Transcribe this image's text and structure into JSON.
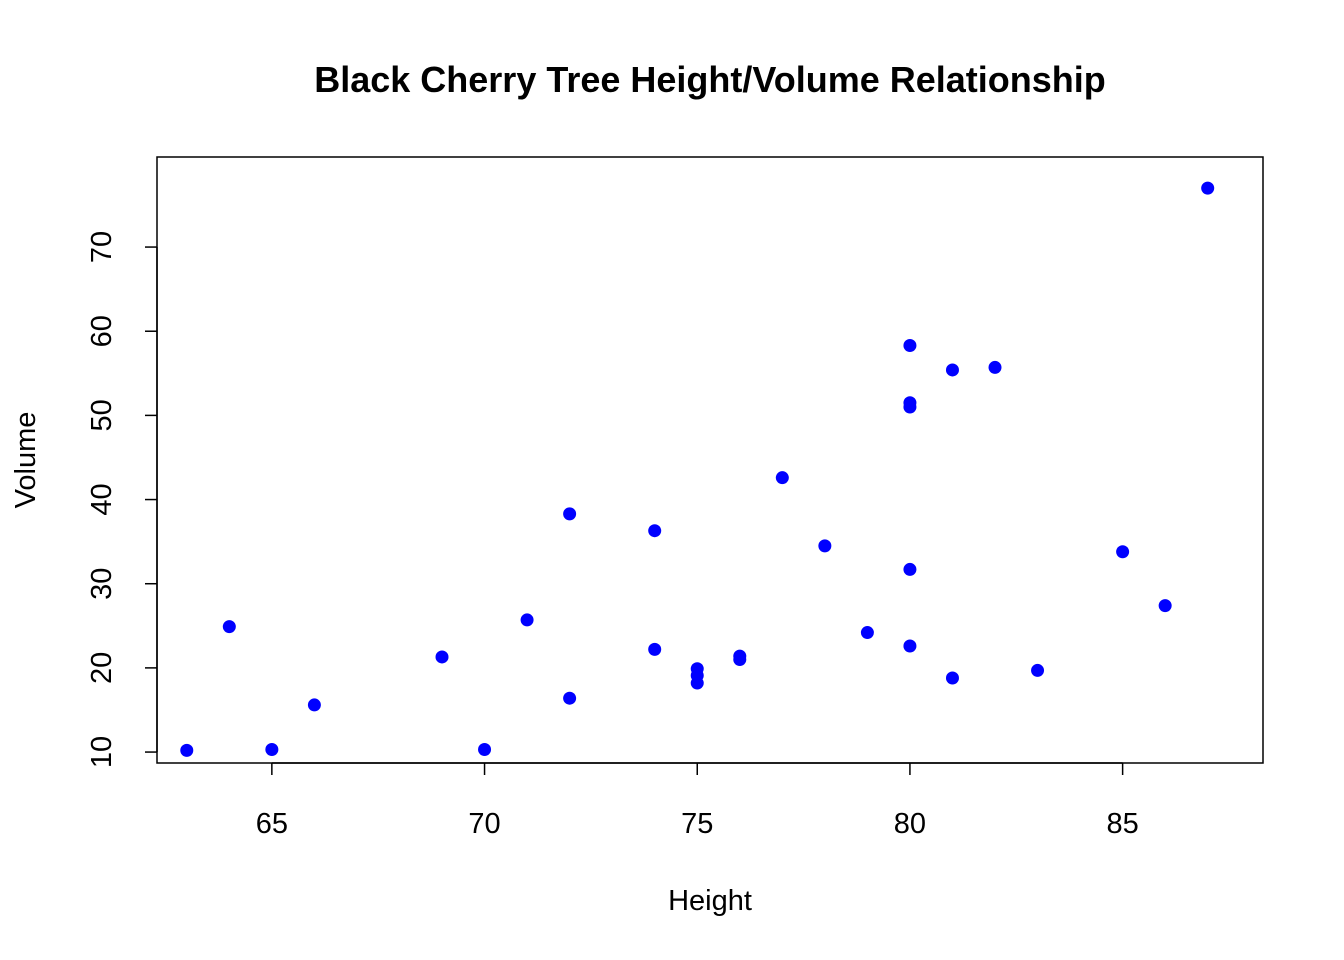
{
  "chart_data": {
    "type": "scatter",
    "title": "Black Cherry Tree Height/Volume Relationship",
    "xlabel": "Height",
    "ylabel": "Volume",
    "xlim": [
      62.3,
      88.3
    ],
    "ylim": [
      8.7,
      80.7
    ],
    "x_ticks": [
      65,
      70,
      75,
      80,
      85
    ],
    "y_ticks": [
      10,
      20,
      30,
      40,
      50,
      60,
      70
    ],
    "grid": false,
    "legend": "none",
    "point_color": "#0000ff",
    "points": [
      {
        "x": 70,
        "y": 10.3
      },
      {
        "x": 65,
        "y": 10.3
      },
      {
        "x": 63,
        "y": 10.2
      },
      {
        "x": 72,
        "y": 16.4
      },
      {
        "x": 81,
        "y": 18.8
      },
      {
        "x": 83,
        "y": 19.7
      },
      {
        "x": 66,
        "y": 15.6
      },
      {
        "x": 75,
        "y": 18.2
      },
      {
        "x": 80,
        "y": 22.6
      },
      {
        "x": 75,
        "y": 19.9
      },
      {
        "x": 79,
        "y": 24.2
      },
      {
        "x": 76,
        "y": 21.0
      },
      {
        "x": 76,
        "y": 21.4
      },
      {
        "x": 69,
        "y": 21.3
      },
      {
        "x": 75,
        "y": 19.1
      },
      {
        "x": 74,
        "y": 22.2
      },
      {
        "x": 85,
        "y": 33.8
      },
      {
        "x": 86,
        "y": 27.4
      },
      {
        "x": 71,
        "y": 25.7
      },
      {
        "x": 64,
        "y": 24.9
      },
      {
        "x": 78,
        "y": 34.5
      },
      {
        "x": 80,
        "y": 31.7
      },
      {
        "x": 74,
        "y": 36.3
      },
      {
        "x": 72,
        "y": 38.3
      },
      {
        "x": 77,
        "y": 42.6
      },
      {
        "x": 81,
        "y": 55.4
      },
      {
        "x": 82,
        "y": 55.7
      },
      {
        "x": 80,
        "y": 58.3
      },
      {
        "x": 80,
        "y": 51.5
      },
      {
        "x": 80,
        "y": 51.0
      },
      {
        "x": 87,
        "y": 77.0
      }
    ]
  }
}
